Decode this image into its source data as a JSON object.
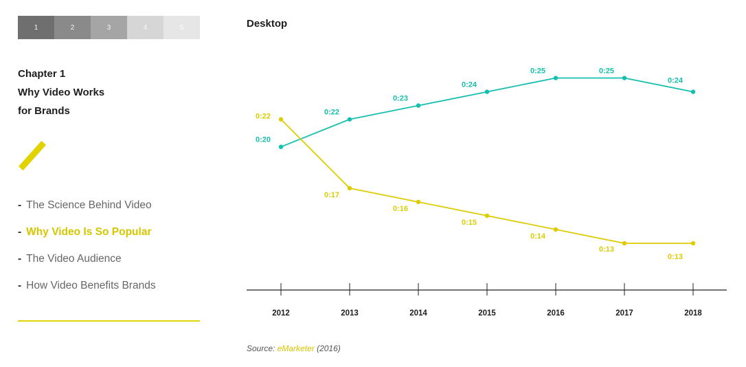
{
  "pager": {
    "pages": [
      "1",
      "2",
      "3",
      "4",
      "5"
    ]
  },
  "chapter": {
    "line1": "Chapter 1",
    "line2": "Why Video Works",
    "line3": "for Brands"
  },
  "nav": {
    "items": [
      {
        "dash": "-",
        "label": "The Science Behind Video"
      },
      {
        "dash": "-",
        "label": "Why Video Is So Popular"
      },
      {
        "dash": "-",
        "label": "The Video Audience"
      },
      {
        "dash": "-",
        "label": "How Video Benefits Brands"
      }
    ]
  },
  "source": {
    "prefix": "Source:",
    "link": "eMarketer",
    "suffix": "(2016)"
  },
  "colors": {
    "teal": "#14bfae",
    "yellow": "#dccc00",
    "accent": "#e2d200"
  },
  "chart_data": {
    "type": "line",
    "title": "Desktop",
    "categories": [
      "2012",
      "2013",
      "2014",
      "2015",
      "2016",
      "2017",
      "2018"
    ],
    "ylabel": "",
    "xlabel": "",
    "ylim": [
      12,
      26
    ],
    "series": [
      {
        "name": "teal",
        "color": "#14bfae",
        "values": [
          20,
          22,
          23,
          24,
          25,
          25,
          24
        ],
        "labels": [
          "0:20",
          "0:22",
          "0:23",
          "0:24",
          "0:25",
          "0:25",
          "0:24"
        ]
      },
      {
        "name": "yellow",
        "color": "#dccc00",
        "values": [
          22,
          17,
          16,
          15,
          14,
          13,
          13
        ],
        "labels": [
          "0:22",
          "0:17",
          "0:16",
          "0:15",
          "0:14",
          "0:13",
          "0:13"
        ]
      }
    ]
  }
}
